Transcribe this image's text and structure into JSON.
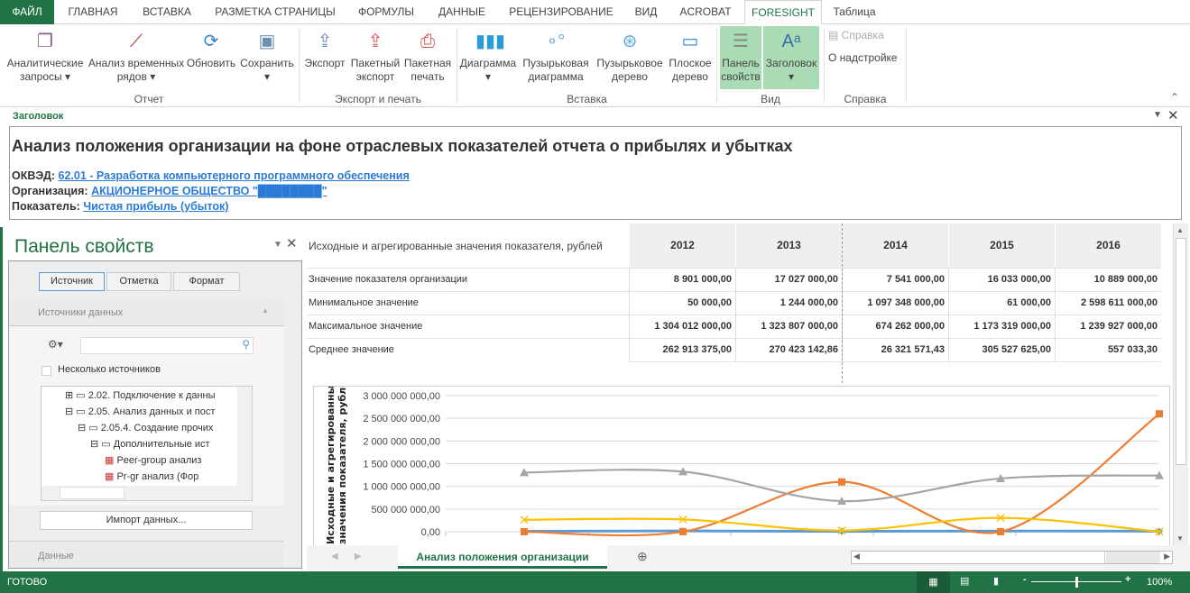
{
  "tabs": [
    "ФАЙЛ",
    "ГЛАВНАЯ",
    "ВСТАВКА",
    "РАЗМЕТКА СТРАНИЦЫ",
    "ФОРМУЛЫ",
    "ДАННЫЕ",
    "РЕЦЕНЗИРОВАНИЕ",
    "ВИД",
    "ACROBAT",
    "FORESIGHT",
    "Таблица"
  ],
  "ribbon": {
    "groups": [
      "Отчет",
      "Экспорт и печать",
      "Вставка",
      "Вид",
      "Справка"
    ],
    "buttons": [
      {
        "l1": "Аналитические",
        "l2": "запросы ▾",
        "icon": "windows-icon"
      },
      {
        "l1": "Анализ временных",
        "l2": "рядов ▾",
        "icon": "time-series-icon"
      },
      {
        "l1": "Обновить",
        "l2": "",
        "icon": "refresh-icon"
      },
      {
        "l1": "Сохранить",
        "l2": "▾",
        "icon": "save-icon"
      },
      {
        "l1": "Экспорт",
        "l2": "",
        "icon": "export-icon"
      },
      {
        "l1": "Пакетный",
        "l2": "экспорт",
        "icon": "batch-export-icon"
      },
      {
        "l1": "Пакетная",
        "l2": "печать",
        "icon": "print-icon"
      },
      {
        "l1": "Диаграмма",
        "l2": "▾",
        "icon": "bar-chart-icon"
      },
      {
        "l1": "Пузырьковая",
        "l2": "диаграмма",
        "icon": "bubble-chart-icon"
      },
      {
        "l1": "Пузырьковое",
        "l2": "дерево",
        "icon": "bubble-tree-icon"
      },
      {
        "l1": "Плоское",
        "l2": "дерево",
        "icon": "flat-tree-icon"
      },
      {
        "l1": "Панель",
        "l2": "свойств",
        "icon": "properties-panel-icon"
      },
      {
        "l1": "Заголовок",
        "l2": "▾",
        "icon": "title-icon"
      }
    ],
    "help": "Справка",
    "about": "О надстройке"
  },
  "header": {
    "pane_title": "Заголовок",
    "title": "Анализ положения организации на фоне отраслевых показателей отчета о прибылях и убытках",
    "okved_label": "ОКВЭД:",
    "okved": "62.01 - Разработка компьютерного программного обеспечения",
    "org_label": "Организация:",
    "org": "АКЦИОНЕРНОЕ ОБЩЕСТВО \"████████\"",
    "indicator_label": "Показатель:",
    "indicator": "Чистая прибыль (убыток)"
  },
  "panel": {
    "title": "Панель свойств",
    "tabs": [
      "Источник",
      "Отметка",
      "Формат"
    ],
    "section1": "Источники данных",
    "multi": "Несколько источников",
    "tree": [
      "2.02. Подключение к данны",
      "2.05. Анализ данных и пост",
      "2.05.4. Создание прочих",
      "Дополнительные ист",
      "Peer-group анализ",
      "Pr-gr анализ (Фор"
    ],
    "import": "Импорт данных...",
    "section2": "Данные"
  },
  "table": {
    "header": "Исходные и агрегированные значения показателя, рублей",
    "years": [
      "2012",
      "2013",
      "2014",
      "2015",
      "2016"
    ],
    "rows": [
      {
        "label": "Значение показателя организации",
        "values": [
          "8 901 000,00",
          "17 027 000,00",
          "7 541 000,00",
          "16 033 000,00",
          "10 889 000,00"
        ]
      },
      {
        "label": "Минимальное значение",
        "values": [
          "50 000,00",
          "1 244 000,00",
          "1 097 348 000,00",
          "61 000,00",
          "2 598 611 000,00"
        ]
      },
      {
        "label": "Максимальное значение",
        "values": [
          "1 304 012 000,00",
          "1 323 807 000,00",
          "674 262 000,00",
          "1 173 319 000,00",
          "1 239 927 000,00"
        ]
      },
      {
        "label": "Среднее значение",
        "values": [
          "262 913 375,00",
          "270 423 142,86",
          "26 321 571,43",
          "305 527 625,00",
          "557 033,30"
        ]
      }
    ]
  },
  "chart_data": {
    "type": "line",
    "ylabel": "Исходные и агрегированные значения показателя, рублей",
    "ylim": [
      0,
      3000000000
    ],
    "yticks": [
      "0,00",
      "500 000 000,00",
      "1 000 000 000,00",
      "1 500 000 000,00",
      "2 000 000 000,00",
      "2 500 000 000,00",
      "3 000 000 000,00"
    ],
    "x": [
      "2012",
      "2013",
      "2014",
      "2015",
      "2016"
    ],
    "grid": true,
    "series": [
      {
        "values": [
          8901000,
          17027000,
          7541000,
          16033000,
          10889000
        ],
        "color": "#5b9bd5",
        "marker": "diamond"
      },
      {
        "values": [
          50000,
          1244000,
          1097348000,
          61000,
          2598611000
        ],
        "color": "#ed7d31",
        "marker": "square"
      },
      {
        "values": [
          1304012000,
          1323807000,
          674262000,
          1173319000,
          1239927000
        ],
        "color": "#a5a5a5",
        "marker": "triangle"
      },
      {
        "values": [
          262913375,
          270423142.86,
          26321571.43,
          305527625,
          557033.3
        ],
        "color": "#ffc000",
        "marker": "x"
      }
    ]
  },
  "sheet": {
    "tab": "Анализ положения организации"
  },
  "status": {
    "text": "ГОТОВО",
    "zoom": "100%",
    "zoom_level": 1.0
  },
  "colors": {
    "accent": "#217346"
  }
}
